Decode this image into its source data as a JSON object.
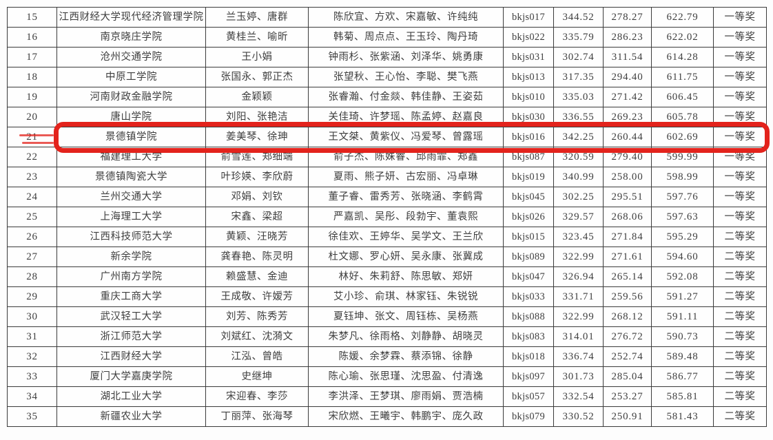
{
  "table": {
    "highlighted_rank": "21",
    "highlight_color": "#e3231c",
    "border_color": "#3a3a3a",
    "text_color": "#3e3e3e",
    "award_first": "一等奖",
    "award_second": "二等奖",
    "rows": [
      {
        "rank": "15",
        "university": "江西财经大学现代经济管理学院",
        "advisors": "兰玉婷、唐群",
        "students": "陈欣宜、方欢、宋嘉敏、许纯纯",
        "code": "bkjs017",
        "score1": "344.52",
        "score2": "278.27",
        "total": "622.79",
        "award": "一等奖"
      },
      {
        "rank": "16",
        "university": "南京晓庄学院",
        "advisors": "黄桂兰、喻昕",
        "students": "韩菊、周点点、王玉玲、陶丹琦",
        "code": "bkjs022",
        "score1": "335.79",
        "score2": "286.23",
        "total": "622.02",
        "award": "一等奖"
      },
      {
        "rank": "17",
        "university": "沧州交通学院",
        "advisors": "王小娟",
        "students": "钟雨杉、张紫涵、刘泽华、姚勇康",
        "code": "bkjs031",
        "score1": "302.74",
        "score2": "311.54",
        "total": "614.28",
        "award": "一等奖"
      },
      {
        "rank": "18",
        "university": "中原工学院",
        "advisors": "张国永、郭正杰",
        "students": "张望秋、王心怡、李聪、樊飞燕",
        "code": "bkjs013",
        "score1": "317.35",
        "score2": "294.40",
        "total": "611.75",
        "award": "一等奖"
      },
      {
        "rank": "19",
        "university": "河南财政金融学院",
        "advisors": "金颖颖",
        "students": "张睿瀚、付金燚、韩佳静、王姿茹",
        "code": "bkjs010",
        "score1": "335.03",
        "score2": "271.42",
        "total": "606.45",
        "award": "一等奖"
      },
      {
        "rank": "20",
        "university": "唐山学院",
        "advisors": "刘阳、张艳洁",
        "students": "关佳琦、许梦瑶、陈孟婷、赵嘉良",
        "code": "bkjs030",
        "score1": "336.55",
        "score2": "269.23",
        "total": "605.78",
        "award": "一等奖"
      },
      {
        "rank": "21",
        "university": "景德镇学院",
        "advisors": "姜美琴、徐珅",
        "students": "王文桀、黄紫仪、冯爱琴、曾露瑶",
        "code": "bkjs016",
        "score1": "342.25",
        "score2": "260.44",
        "total": "602.69",
        "award": "一等奖"
      },
      {
        "rank": "22",
        "university": "福建理工大学",
        "advisors": "俞雪莲、郑细端",
        "students": "俞子杰、陈姝睿、邱雨霏、郑鑫",
        "code": "bkjs087",
        "score1": "320.59",
        "score2": "279.40",
        "total": "599.99",
        "award": "一等奖"
      },
      {
        "rank": "23",
        "university": "景德镇陶瓷大学",
        "advisors": "叶珍媖、李欣蔚",
        "students": "夏雨、熊子妍、古宏丽、冯卓琳",
        "code": "bkjs019",
        "score1": "340.99",
        "score2": "258.00",
        "total": "598.99",
        "award": "一等奖"
      },
      {
        "rank": "24",
        "university": "兰州交通大学",
        "advisors": "邓娟、刘钦",
        "students": "董子睿、雷秀芳、张晓涵、李鹤霄",
        "code": "bkjs045",
        "score1": "302.25",
        "score2": "295.51",
        "total": "597.76",
        "award": "一等奖"
      },
      {
        "rank": "25",
        "university": "上海理工大学",
        "advisors": "宋鑫、梁超",
        "students": "严嘉凯、吴彤、段勃宇、董袁熙",
        "code": "bkjs026",
        "score1": "329.57",
        "score2": "268.06",
        "total": "597.63",
        "award": "一等奖"
      },
      {
        "rank": "26",
        "university": "江西科技师范大学",
        "advisors": "黄颖、汪晓芳",
        "students": "徐佳欢、王婷华、吴学文、王兰欣",
        "code": "bkjs015",
        "score1": "323.45",
        "score2": "271.84",
        "total": "595.29",
        "award": "二等奖"
      },
      {
        "rank": "27",
        "university": "新余学院",
        "advisors": "龚春艳、陈灵明",
        "students": "杜文娜、罗心妍、吴永康、张冀成",
        "code": "bkjs089",
        "score1": "322.99",
        "score2": "271.61",
        "total": "594.60",
        "award": "二等奖"
      },
      {
        "rank": "28",
        "university": "广州南方学院",
        "advisors": "赖盛慧、金迪",
        "students": "林好、朱莉舒、陈思敏、郑妍",
        "code": "bkjs047",
        "score1": "326.94",
        "score2": "265.14",
        "total": "592.08",
        "award": "二等奖"
      },
      {
        "rank": "29",
        "university": "重庆工商大学",
        "advisors": "王成敬、许嫒芳",
        "students": "艾小珍、俞琪、林家钰、朱锐锐",
        "code": "bkjs033",
        "score1": "331.71",
        "score2": "259.56",
        "total": "591.27",
        "award": "二等奖"
      },
      {
        "rank": "30",
        "university": "武汉轻工大学",
        "advisors": "刘芳、陈秀芳",
        "students": "夏钰坤、张文、周钰栋、吴杨燕",
        "code": "bkjs088",
        "score1": "322.99",
        "score2": "268.12",
        "total": "591.11",
        "award": "二等奖"
      },
      {
        "rank": "31",
        "university": "浙江师范大学",
        "advisors": "刘斌红、沈漪文",
        "students": "朱梦凡、徐雨格、刘静静、胡晓灵",
        "code": "bkjs083",
        "score1": "314.01",
        "score2": "276.72",
        "total": "590.73",
        "award": "二等奖"
      },
      {
        "rank": "32",
        "university": "江西财经大学",
        "advisors": "江泓、曾皓",
        "students": "陈媛、余梦霖、蔡添锦、徐静",
        "code": "bkjs018",
        "score1": "336.74",
        "score2": "252.74",
        "total": "589.48",
        "award": "二等奖"
      },
      {
        "rank": "33",
        "university": "厦门大学嘉庚学院",
        "advisors": "史继坤",
        "students": "陈心瑜、张思瑾、沈思盈、付清逸",
        "code": "bkjs097",
        "score1": "301.73",
        "score2": "285.04",
        "total": "586.77",
        "award": "二等奖"
      },
      {
        "rank": "34",
        "university": "湖北工业大学",
        "advisors": "宋迎春、李莎",
        "students": "李洪泽、王梦琪、廖雨娟、贾浩楠",
        "code": "bkjs057",
        "score1": "332.54",
        "score2": "253.27",
        "total": "585.81",
        "award": "二等奖"
      },
      {
        "rank": "35",
        "university": "新疆农业大学",
        "advisors": "丁丽萍、张海琴",
        "students": "宋欣燃、王曦宇、韩鹏宇、庞久政",
        "code": "bkjs079",
        "score1": "330.52",
        "score2": "250.91",
        "total": "581.43",
        "award": "二等奖"
      }
    ]
  }
}
